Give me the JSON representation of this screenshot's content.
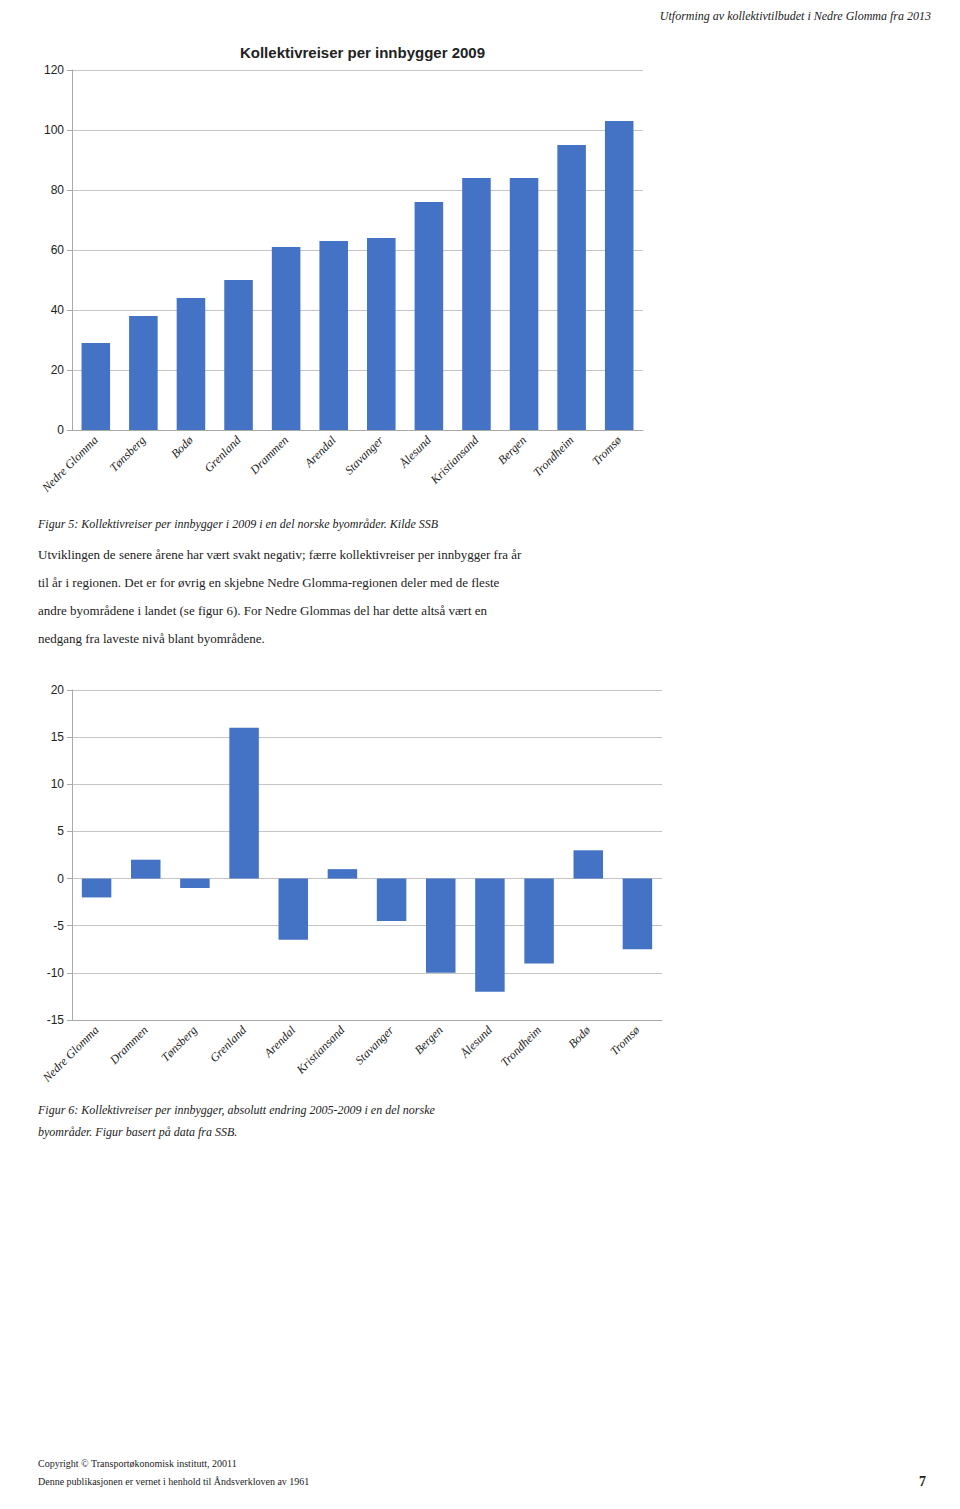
{
  "chart_data": [
    {
      "type": "bar",
      "title": "Kollektivreiser per innbygger 2009",
      "categories": [
        "Nedre Glomma",
        "Tønsberg",
        "Bodø",
        "Grenland",
        "Drammen",
        "Arendal",
        "Stavanger",
        "Ålesund",
        "Kristiansand",
        "Bergen",
        "Trondheim",
        "Tromsø"
      ],
      "values": [
        29,
        38,
        44,
        50,
        61,
        63,
        64,
        76,
        84,
        84,
        95,
        103
      ],
      "color": "#4472C4",
      "ylim": [
        0,
        120
      ],
      "yticks": [
        0,
        20,
        40,
        60,
        80,
        100,
        120
      ],
      "grid": true
    },
    {
      "type": "bar",
      "categories": [
        "Nedre Glomma",
        "Drammen",
        "Tønsberg",
        "Grenland",
        "Arendal",
        "Kristiansand",
        "Stavanger",
        "Bergen",
        "Ålesund",
        "Trondheim",
        "Bodø",
        "Tromsø"
      ],
      "values": [
        -2,
        2,
        -1,
        16,
        -6.5,
        1,
        -4.5,
        -10,
        -12,
        -9,
        3,
        -7.5
      ],
      "color": "#4472C4",
      "ylim": [
        -15,
        20
      ],
      "yticks": [
        -15,
        -10,
        -5,
        0,
        5,
        10,
        15,
        20
      ],
      "grid": true
    }
  ],
  "annotations": [
    "Utforming av kollektivtilbudet i Nedre Glomma fra 2013",
    "Figur 5: Kollektivreiser per innbygger i 2009 i en del norske byområder. Kilde SSB",
    "Utviklingen de senere årene har vært svakt negativ; færre kollektivreiser per innbygger fra år",
    "til år i regionen. Det er for øvrig en skjebne Nedre Glomma-regionen deler med de fleste",
    "andre byområdene i landet (se figur 6). For Nedre Glommas del har dette altså vært en",
    "nedgang fra laveste nivå blant byområdene.",
    "Figur 6: Kollektivreiser per innbygger, absolutt endring 2005-2009 i en del norske",
    "byområder. Figur basert på data fra SSB.",
    "Copyright © Transportøkonomisk institutt, 20011",
    "Denne publikasjonen er vernet i henhold til Åndsverkloven av 1961",
    "7"
  ]
}
